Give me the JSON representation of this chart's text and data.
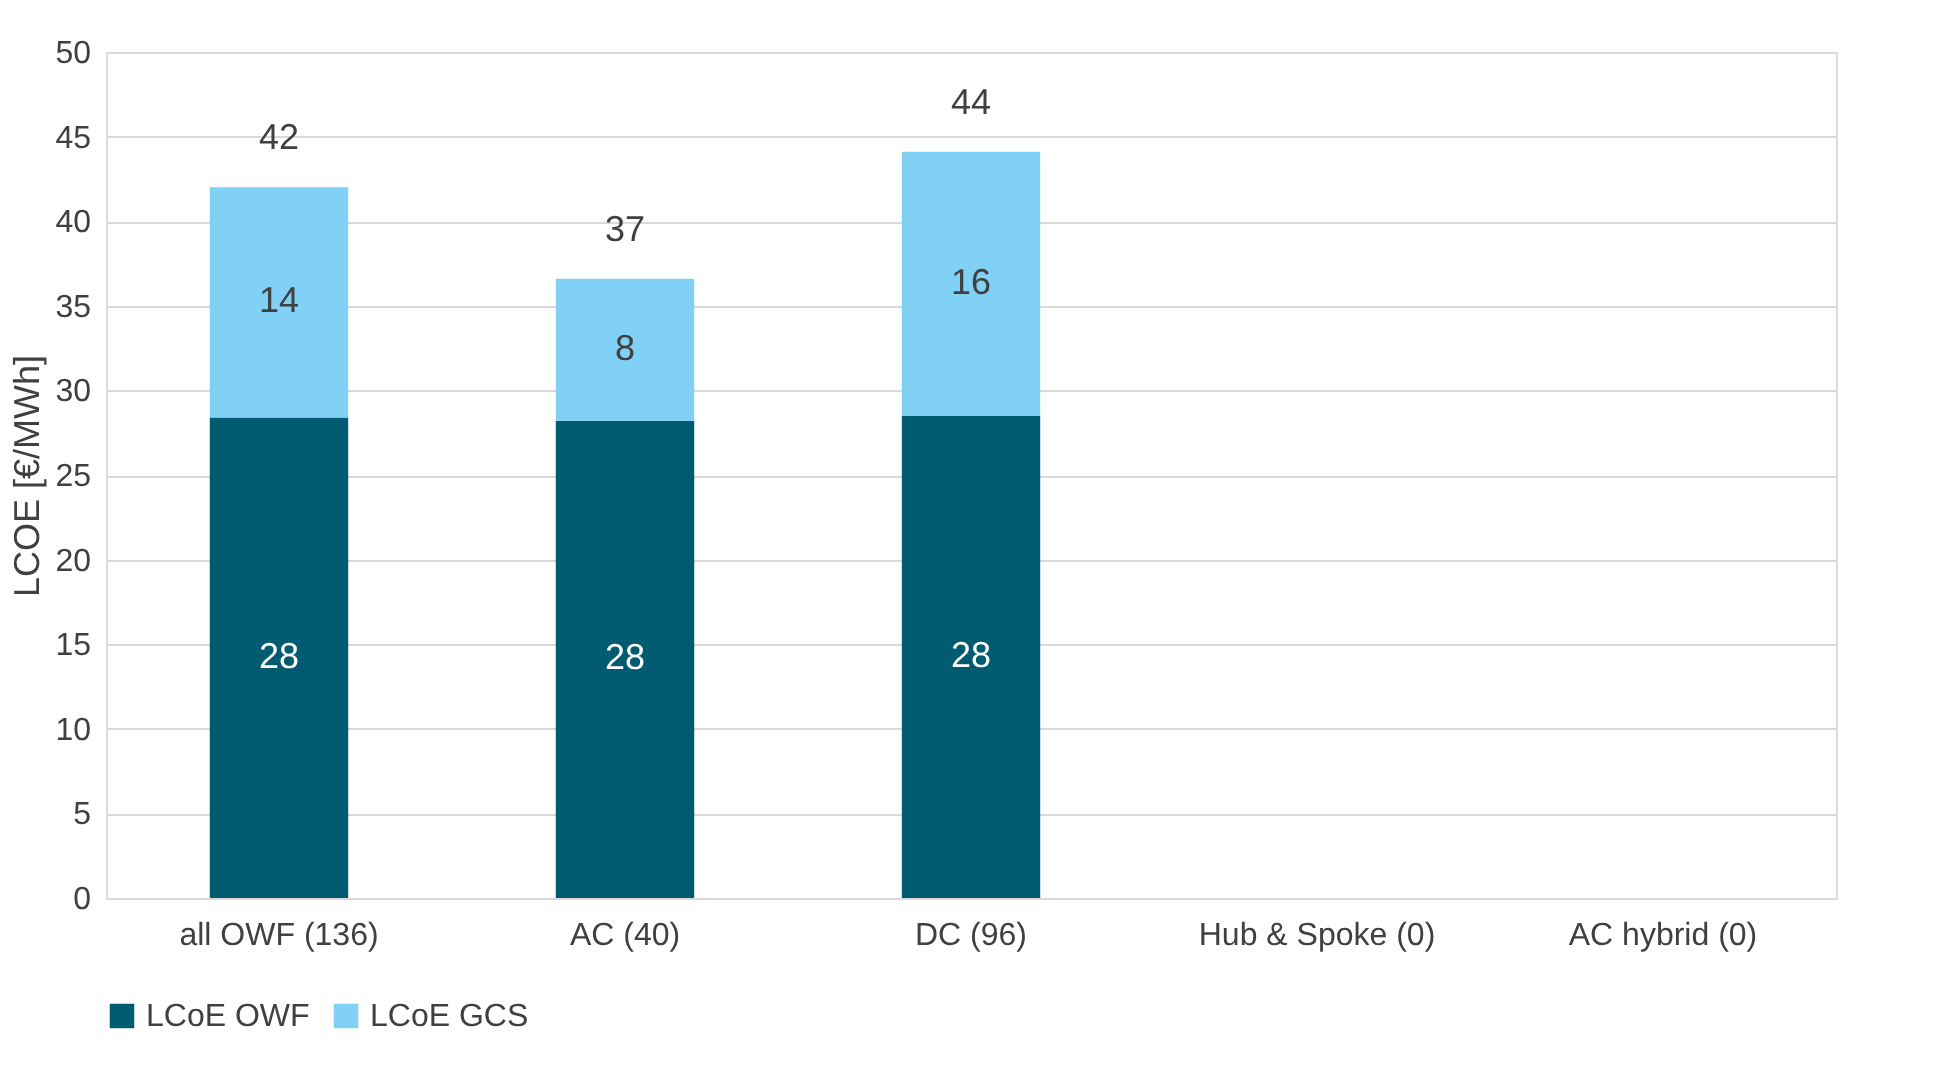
{
  "chart_data": {
    "type": "bar",
    "stacked": true,
    "ylabel": "LCOE [€/MWh]",
    "categories": [
      "all OWF (136)",
      "AC (40)",
      "DC (96)",
      "Hub & Spoke (0)",
      "AC hybrid (0)"
    ],
    "series": [
      {
        "name": "LCoE OWF",
        "color": "#005a70",
        "values": [
          28.4,
          28.2,
          28.5,
          null,
          null
        ],
        "value_labels": [
          "28",
          "28",
          "28",
          null,
          null
        ]
      },
      {
        "name": "LCoE GCS",
        "color": "#80d1f5",
        "values": [
          13.6,
          8.4,
          15.6,
          null,
          null
        ],
        "value_labels": [
          "14",
          "8",
          "16",
          null,
          null
        ]
      }
    ],
    "totals": [
      "42",
      "37",
      "44",
      null,
      null
    ],
    "ylim": [
      0,
      50
    ],
    "yticks": [
      0,
      5,
      10,
      15,
      20,
      25,
      30,
      35,
      40,
      45,
      50
    ],
    "grid": "y",
    "legend": "bottom"
  }
}
